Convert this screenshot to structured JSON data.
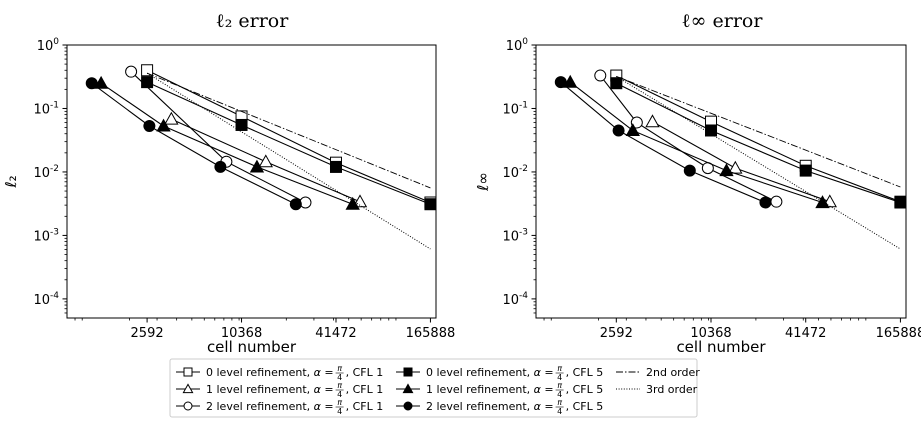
{
  "chart_data": [
    {
      "type": "line",
      "title": "ℓ₂ error",
      "xlabel": "cell number",
      "ylabel": "ℓ₂",
      "xscale": "log",
      "yscale": "log",
      "xlim": [
        800,
        180000
      ],
      "ylim": [
        5e-05,
        1
      ],
      "xticks": [
        2592,
        10368,
        41472,
        165888
      ],
      "xtick_labels": [
        "2592",
        "10368",
        "41472",
        "165888"
      ],
      "yticks": [
        1,
        0.1,
        0.01,
        0.001,
        0.0001
      ],
      "ytick_labels": [
        {
          "base": "10",
          "exp": "0"
        },
        {
          "base": "10",
          "exp": "-1"
        },
        {
          "base": "10",
          "exp": "-2"
        },
        {
          "base": "10",
          "exp": "-3"
        },
        {
          "base": "10",
          "exp": "-4"
        }
      ],
      "series": [
        {
          "name": "0 level refinement, α=π/4, CFL 1",
          "marker": "square",
          "filled": false,
          "x": [
            2592,
            10368,
            41472,
            165888
          ],
          "y": [
            0.4,
            0.075,
            0.014,
            0.0033
          ]
        },
        {
          "name": "1 level refinement, α=π/4, CFL 1",
          "marker": "triangle",
          "filled": false,
          "x": [
            3700,
            14800,
            59000
          ],
          "y": [
            0.068,
            0.0145,
            0.0034
          ]
        },
        {
          "name": "2 level refinement, α=π/4, CFL 1",
          "marker": "circle",
          "filled": false,
          "x": [
            2050,
            8300,
            26500
          ],
          "y": [
            0.38,
            0.0145,
            0.0033
          ]
        },
        {
          "name": "0 level refinement, α=π/4, CFL 5",
          "marker": "square",
          "filled": true,
          "x": [
            2592,
            10368,
            41472,
            165888
          ],
          "y": [
            0.26,
            0.055,
            0.012,
            0.0031
          ]
        },
        {
          "name": "1 level refinement, α=π/4, CFL 5",
          "marker": "triangle",
          "filled": true,
          "x": [
            1320,
            3300,
            13000,
            53000
          ],
          "y": [
            0.25,
            0.053,
            0.012,
            0.0031
          ]
        },
        {
          "name": "2 level refinement, α=π/4, CFL 5",
          "marker": "circle",
          "filled": true,
          "x": [
            1150,
            2680,
            7600,
            23000
          ],
          "y": [
            0.25,
            0.053,
            0.012,
            0.0031
          ]
        },
        {
          "name": "2nd order",
          "style": "dashdot",
          "x": [
            2592,
            165888
          ],
          "y": [
            0.36,
            0.0056
          ]
        },
        {
          "name": "3rd order",
          "style": "dotted",
          "x": [
            2592,
            165888
          ],
          "y": [
            0.36,
            0.00061
          ]
        }
      ]
    },
    {
      "type": "line",
      "title": "ℓ∞ error",
      "xlabel": "cell number",
      "ylabel": "ℓ∞",
      "xscale": "log",
      "yscale": "log",
      "xlim": [
        800,
        180000
      ],
      "ylim": [
        5e-05,
        1
      ],
      "xticks": [
        2592,
        10368,
        41472,
        165888
      ],
      "xtick_labels": [
        "2592",
        "10368",
        "41472",
        "165888"
      ],
      "yticks": [
        1,
        0.1,
        0.01,
        0.001,
        0.0001
      ],
      "ytick_labels": [
        {
          "base": "10",
          "exp": "0"
        },
        {
          "base": "10",
          "exp": "-1"
        },
        {
          "base": "10",
          "exp": "-2"
        },
        {
          "base": "10",
          "exp": "-3"
        },
        {
          "base": "10",
          "exp": "-4"
        }
      ],
      "series": [
        {
          "name": "0 level refinement, α=π/4, CFL 1",
          "marker": "square",
          "filled": false,
          "x": [
            2592,
            10368,
            41472,
            165888
          ],
          "y": [
            0.33,
            0.062,
            0.0125,
            0.0034
          ]
        },
        {
          "name": "1 level refinement, α=π/4, CFL 1",
          "marker": "triangle",
          "filled": false,
          "x": [
            4400,
            14800,
            59000
          ],
          "y": [
            0.062,
            0.0115,
            0.0034
          ]
        },
        {
          "name": "2 level refinement, α=π/4, CFL 1",
          "marker": "circle",
          "filled": false,
          "x": [
            2050,
            3500,
            9900,
            27000
          ],
          "y": [
            0.33,
            0.06,
            0.0115,
            0.0034
          ]
        },
        {
          "name": "0 level refinement, α=π/4, CFL 5",
          "marker": "square",
          "filled": true,
          "x": [
            2592,
            10368,
            41472,
            165888
          ],
          "y": [
            0.25,
            0.045,
            0.0105,
            0.0033
          ]
        },
        {
          "name": "1 level refinement, α=π/4, CFL 5",
          "marker": "triangle",
          "filled": true,
          "x": [
            1320,
            3300,
            13000,
            53000
          ],
          "y": [
            0.26,
            0.045,
            0.0105,
            0.0033
          ]
        },
        {
          "name": "2 level refinement, α=π/4, CFL 5",
          "marker": "circle",
          "filled": true,
          "x": [
            1150,
            2680,
            7600,
            23000
          ],
          "y": [
            0.26,
            0.045,
            0.0105,
            0.0033
          ]
        },
        {
          "name": "2nd order",
          "style": "dashdot",
          "x": [
            2592,
            165888
          ],
          "y": [
            0.32,
            0.0058
          ]
        },
        {
          "name": "3rd order",
          "style": "dotted",
          "x": [
            2592,
            165888
          ],
          "y": [
            0.32,
            0.00061
          ]
        }
      ]
    }
  ],
  "legend": {
    "placement": "bottom-center",
    "entries": [
      {
        "marker": "square",
        "filled": false,
        "prefix": "0 level refinement, ",
        "alpha": "α = ",
        "pi": "π",
        "four": "4",
        "suffix": ", CFL 1"
      },
      {
        "marker": "triangle",
        "filled": false,
        "prefix": "1 level refinement, ",
        "alpha": "α = ",
        "pi": "π",
        "four": "4",
        "suffix": ", CFL 1"
      },
      {
        "marker": "circle",
        "filled": false,
        "prefix": "2 level refinement, ",
        "alpha": "α = ",
        "pi": "π",
        "four": "4",
        "suffix": ", CFL 1"
      },
      {
        "marker": "square",
        "filled": true,
        "prefix": "0 level refinement, ",
        "alpha": "α = ",
        "pi": "π",
        "four": "4",
        "suffix": ", CFL 5"
      },
      {
        "marker": "triangle",
        "filled": true,
        "prefix": "1 level refinement, ",
        "alpha": "α = ",
        "pi": "π",
        "four": "4",
        "suffix": ", CFL 5"
      },
      {
        "marker": "circle",
        "filled": true,
        "prefix": "2 level refinement, ",
        "alpha": "α = ",
        "pi": "π",
        "four": "4",
        "suffix": ", CFL 5"
      },
      {
        "style": "dashdot",
        "label": "2nd order"
      },
      {
        "style": "dotted",
        "label": "3rd order"
      }
    ]
  }
}
